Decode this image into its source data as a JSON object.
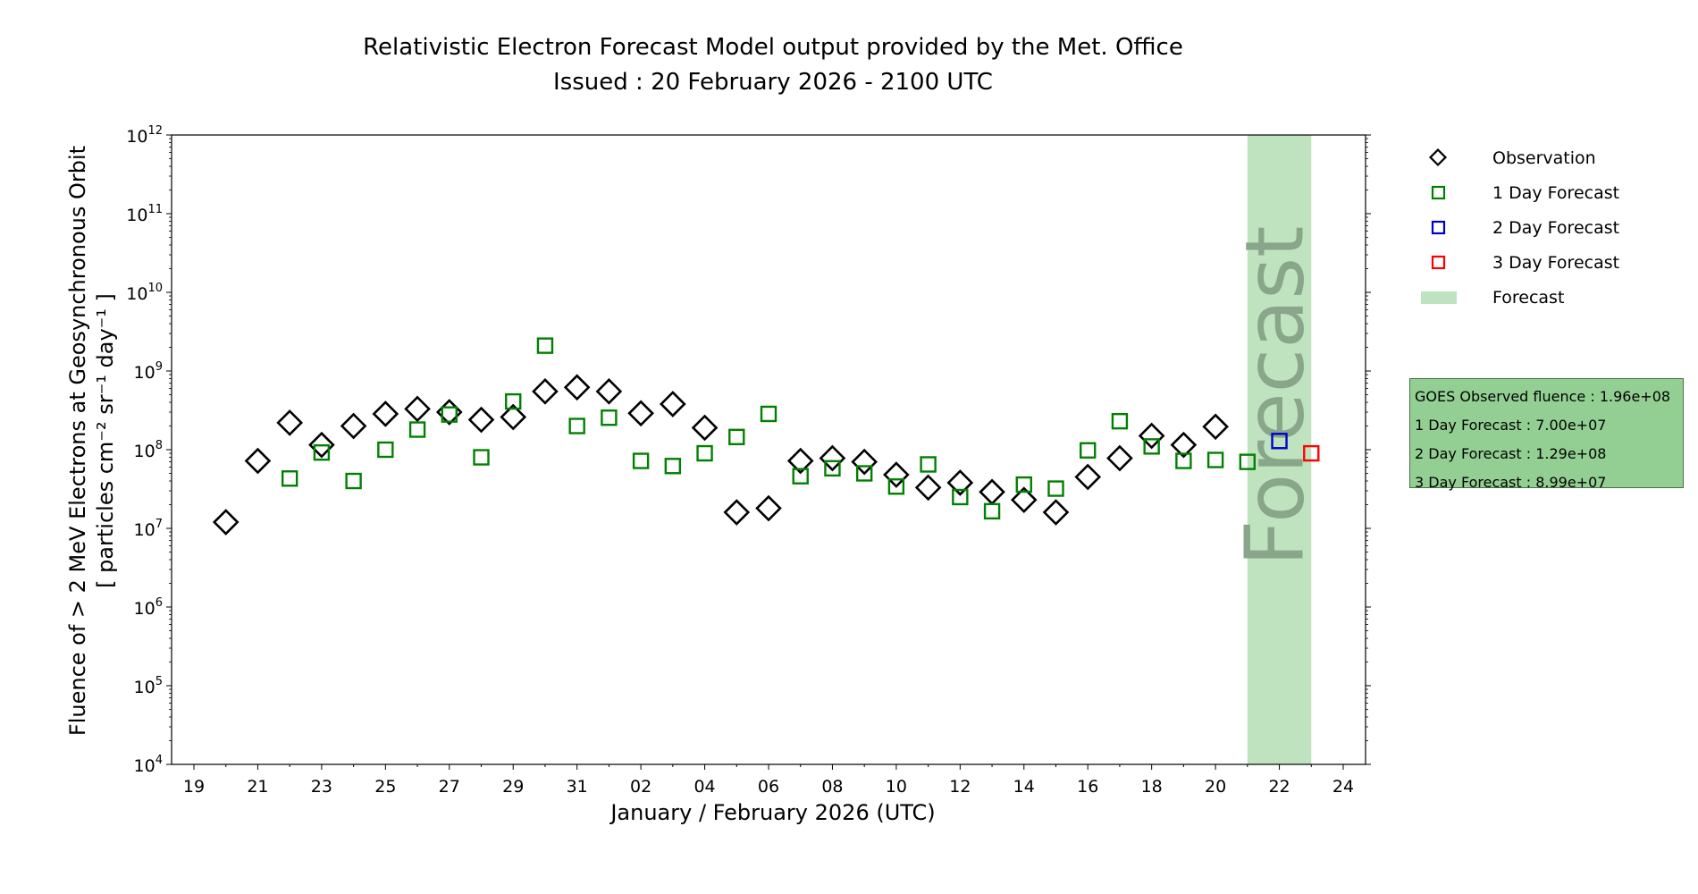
{
  "chart_data": {
    "type": "scatter",
    "title": "Relativistic Electron Forecast Model output provided by the Met. Office",
    "subtitle": "Issued : 20 February 2026 - 2100 UTC",
    "xlabel": "January / February 2026 (UTC)",
    "ylabel_line1": "Fluence of > 2 MeV Electrons at Geosynchronous Orbit",
    "ylabel_line2": "[ particles cm⁻² sr⁻¹ day⁻¹ ]",
    "yscale": "log",
    "ylim": [
      10000,
      1000000000000
    ],
    "y_tick_exponents": [
      4,
      5,
      6,
      7,
      8,
      9,
      10,
      11,
      12
    ],
    "x_range_days": [
      -0.7,
      36.7
    ],
    "x_ticks": [
      {
        "day": 0,
        "label": "19"
      },
      {
        "day": 2,
        "label": "21"
      },
      {
        "day": 4,
        "label": "23"
      },
      {
        "day": 6,
        "label": "25"
      },
      {
        "day": 8,
        "label": "27"
      },
      {
        "day": 10,
        "label": "29"
      },
      {
        "day": 12,
        "label": "31"
      },
      {
        "day": 14,
        "label": "02"
      },
      {
        "day": 16,
        "label": "04"
      },
      {
        "day": 18,
        "label": "06"
      },
      {
        "day": 20,
        "label": "08"
      },
      {
        "day": 22,
        "label": "10"
      },
      {
        "day": 24,
        "label": "12"
      },
      {
        "day": 26,
        "label": "14"
      },
      {
        "day": 28,
        "label": "16"
      },
      {
        "day": 30,
        "label": "18"
      },
      {
        "day": 32,
        "label": "20"
      },
      {
        "day": 34,
        "label": "22"
      },
      {
        "day": 36,
        "label": "24"
      }
    ],
    "forecast_span_days": [
      33,
      35
    ],
    "forecast_text": "Forecast",
    "series": [
      {
        "name": "Observation",
        "marker": "diamond",
        "color": "#000000",
        "points": [
          [
            1,
            12000000.0
          ],
          [
            2,
            72000000.0
          ],
          [
            3,
            220000000.0
          ],
          [
            4,
            115000000.0
          ],
          [
            5,
            200000000.0
          ],
          [
            6,
            285000000.0
          ],
          [
            7,
            330000000.0
          ],
          [
            8,
            300000000.0
          ],
          [
            9,
            240000000.0
          ],
          [
            10,
            260000000.0
          ],
          [
            11,
            550000000.0
          ],
          [
            12,
            620000000.0
          ],
          [
            13,
            550000000.0
          ],
          [
            14,
            290000000.0
          ],
          [
            15,
            380000000.0
          ],
          [
            16,
            190000000.0
          ],
          [
            17,
            16000000.0
          ],
          [
            18,
            18000000.0
          ],
          [
            19,
            72000000.0
          ],
          [
            20,
            78000000.0
          ],
          [
            21,
            70000000.0
          ],
          [
            22,
            48000000.0
          ],
          [
            23,
            33000000.0
          ],
          [
            24,
            38000000.0
          ],
          [
            25,
            29000000.0
          ],
          [
            26,
            23000000.0
          ],
          [
            27,
            16000000.0
          ],
          [
            28,
            45000000.0
          ],
          [
            29,
            78000000.0
          ],
          [
            30,
            150000000.0
          ],
          [
            31,
            115000000.0
          ],
          [
            32,
            196000000.0
          ]
        ]
      },
      {
        "name": "1 Day Forecast",
        "marker": "square",
        "color": "#008000",
        "points": [
          [
            3,
            43000000.0
          ],
          [
            4,
            92000000.0
          ],
          [
            5,
            40000000.0
          ],
          [
            6,
            100000000.0
          ],
          [
            7,
            180000000.0
          ],
          [
            8,
            280000000.0
          ],
          [
            9,
            80000000.0
          ],
          [
            10,
            410000000.0
          ],
          [
            11,
            2100000000.0
          ],
          [
            12,
            200000000.0
          ],
          [
            13,
            255000000.0
          ],
          [
            14,
            72000000.0
          ],
          [
            15,
            62000000.0
          ],
          [
            16,
            90000000.0
          ],
          [
            17,
            145000000.0
          ],
          [
            18,
            285000000.0
          ],
          [
            19,
            46000000.0
          ],
          [
            20,
            58000000.0
          ],
          [
            21,
            50000000.0
          ],
          [
            22,
            34000000.0
          ],
          [
            23,
            65000000.0
          ],
          [
            24,
            25000000.0
          ],
          [
            25,
            16500000.0
          ],
          [
            26,
            36000000.0
          ],
          [
            27,
            32000000.0
          ],
          [
            28,
            98000000.0
          ],
          [
            29,
            230000000.0
          ],
          [
            30,
            110000000.0
          ],
          [
            31,
            72000000.0
          ],
          [
            32,
            74000000.0
          ],
          [
            33,
            70000000.0
          ]
        ]
      },
      {
        "name": "2 Day Forecast",
        "marker": "square",
        "color": "#0000cc",
        "points": [
          [
            34,
            129000000.0
          ]
        ]
      },
      {
        "name": "3 Day Forecast",
        "marker": "square",
        "color": "#ff0000",
        "points": [
          [
            35,
            89900000.0
          ]
        ]
      }
    ],
    "legend_position": "right",
    "legend": [
      {
        "label": "Observation",
        "marker": "diamond",
        "color": "#000000"
      },
      {
        "label": "1 Day Forecast",
        "marker": "square",
        "color": "#008000"
      },
      {
        "label": "2 Day Forecast",
        "marker": "square",
        "color": "#0000cc"
      },
      {
        "label": "3 Day Forecast",
        "marker": "square",
        "color": "#ff0000"
      },
      {
        "label": "Forecast",
        "marker": "patch",
        "color": "#bfe3bf"
      }
    ],
    "info_box": [
      "GOES Observed fluence : 1.96e+08",
      "1 Day Forecast : 7.00e+07",
      "2 Day Forecast : 1.29e+08",
      "3 Day Forecast : 8.99e+07"
    ]
  },
  "colors": {
    "forecast_band": "#bfe3bf",
    "forecast_text": "#8aa68a",
    "info_box_bg": "#93cf93"
  }
}
